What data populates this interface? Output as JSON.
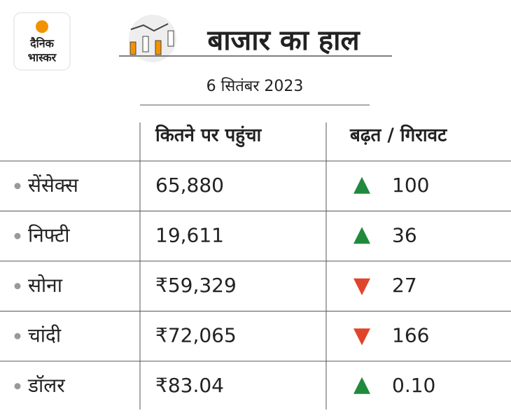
{
  "logo": {
    "line1": "दैनिक",
    "line2": "भास्कर"
  },
  "header": {
    "title": "बाजार का हाल",
    "date": "6 सितंबर 2023"
  },
  "table": {
    "columns": [
      "कितने पर पहुंचा",
      "बढ़त / गिरावट"
    ],
    "rows": [
      {
        "name": "सेंसेक्स",
        "value": "65,880",
        "change": "100",
        "direction": "up"
      },
      {
        "name": "निफ्टी",
        "value": "19,611",
        "change": "36",
        "direction": "up"
      },
      {
        "name": "सोना",
        "value": "₹59,329",
        "change": "27",
        "direction": "down"
      },
      {
        "name": "चांदी",
        "value": "₹72,065",
        "change": "166",
        "direction": "down"
      },
      {
        "name": "डॉलर",
        "value": "₹83.04",
        "change": "0.10",
        "direction": "up"
      }
    ]
  },
  "colors": {
    "up": "#1f8a3c",
    "down": "#e0452b"
  }
}
